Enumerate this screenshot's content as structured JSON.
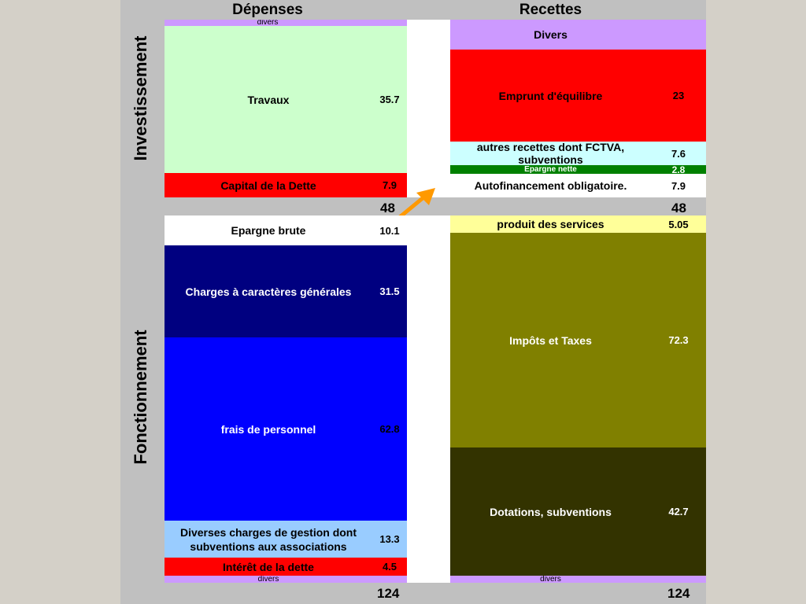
{
  "headers": {
    "depenses": "Dépenses",
    "recettes": "Recettes"
  },
  "sections": {
    "investissement": "Investissement",
    "fonctionnement": "Fonctionnement"
  },
  "totals": {
    "inv_dep": "48",
    "inv_rec": "48",
    "fonc_dep": "124",
    "fonc_rec": "124"
  },
  "colors": {
    "lavender": "#cc99ff",
    "lightgreen": "#ccffcc",
    "red": "#ff0000",
    "white": "#ffffff",
    "navy": "#000080",
    "blue": "#0000ff",
    "lightblue": "#99ccff",
    "cyan": "#ccffff",
    "darkgreen": "#008000",
    "lightyellow": "#ffff99",
    "olive": "#808000",
    "darkolive": "#333300",
    "arrow": "#ff9900",
    "panel": "#c0c0c0"
  },
  "chart_data": {
    "type": "bar",
    "columns": [
      {
        "section": "Investissement",
        "side": "Dépenses",
        "total": 48,
        "items": [
          {
            "label": "divers",
            "value": null
          },
          {
            "label": "Travaux",
            "value": 35.7
          },
          {
            "label": "Capital de la Dette",
            "value": 7.9
          }
        ]
      },
      {
        "section": "Investissement",
        "side": "Recettes",
        "total": 48,
        "items": [
          {
            "label": "Divers",
            "value": null
          },
          {
            "label": "Emprunt d'équilibre",
            "value": 23
          },
          {
            "label": "autres recettes dont FCTVA, subventions",
            "value": 7.6
          },
          {
            "label": "Epargne nette",
            "value": 2.8
          },
          {
            "label": "Autofinancement obligatoire.",
            "value": 7.9
          }
        ]
      },
      {
        "section": "Fonctionnement",
        "side": "Dépenses",
        "total": 124,
        "items": [
          {
            "label": "Epargne brute",
            "value": 10.1
          },
          {
            "label": "Charges à  caractères générales",
            "value": 31.5
          },
          {
            "label": "frais de personnel",
            "value": 62.8
          },
          {
            "label": "Diverses charges de gestion dont subventions aux associations",
            "value": 13.3
          },
          {
            "label": "Intérêt de la dette",
            "value": 4.5
          },
          {
            "label": "divers",
            "value": null
          }
        ]
      },
      {
        "section": "Fonctionnement",
        "side": "Recettes",
        "total": 124,
        "items": [
          {
            "label": "produit des services",
            "value": 5.05
          },
          {
            "label": "Impôts et Taxes",
            "value": 72.3
          },
          {
            "label": "Dotations, subventions",
            "value": 42.7
          },
          {
            "label": "divers",
            "value": null
          }
        ]
      }
    ]
  },
  "blocks": {
    "inv_dep_divers": {
      "label": "divers"
    },
    "travaux": {
      "label": "Travaux",
      "value": "35.7"
    },
    "capital_dette": {
      "label": "Capital de la Dette",
      "value": "7.9"
    },
    "inv_rec_divers": {
      "label": "Divers"
    },
    "emprunt": {
      "label": "Emprunt d'équilibre",
      "value": "23"
    },
    "autres_recettes": {
      "label": "autres recettes dont FCTVA, subventions",
      "value": "7.6"
    },
    "epargne_nette": {
      "label": "Epargne nette",
      "value": "2.8"
    },
    "autofinancement": {
      "label": "Autofinancement obligatoire.",
      "value": "7.9"
    },
    "epargne_brute": {
      "label": "Epargne brute",
      "value": "10.1"
    },
    "charges_generales": {
      "label": "Charges à  caractères générales",
      "value": "31.5"
    },
    "frais_personnel": {
      "label": "frais de personnel",
      "value": "62.8"
    },
    "diverses_charges": {
      "label": "Diverses charges de gestion dont subventions aux associations",
      "value": "13.3"
    },
    "interet_dette": {
      "label": "Intérêt de la dette",
      "value": "4.5"
    },
    "fonc_dep_divers": {
      "label": "divers"
    },
    "produit_services": {
      "label": "produit des services",
      "value": "5.05"
    },
    "impots_taxes": {
      "label": "Impôts et Taxes",
      "value": "72.3"
    },
    "dotations": {
      "label": "Dotations, subventions",
      "value": "42.7"
    },
    "fonc_rec_divers": {
      "label": "divers"
    }
  }
}
